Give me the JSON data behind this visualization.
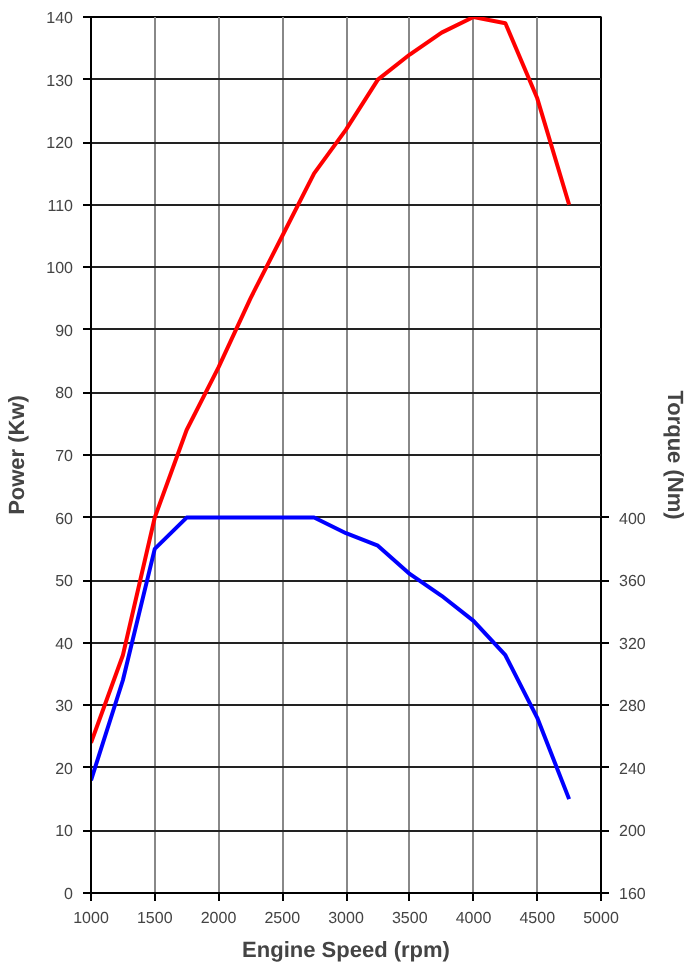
{
  "chart_data": {
    "type": "line",
    "xlabel": "Engine Speed (rpm)",
    "ylabel": "Power (Kw)",
    "y2label": "Torque (Nm)",
    "x": [
      1000,
      1250,
      1500,
      1750,
      2000,
      2250,
      2500,
      2750,
      3000,
      3250,
      3500,
      3750,
      4000,
      4250,
      4500,
      4750
    ],
    "series": [
      {
        "color": "#ff0000",
        "values": [
          24,
          38,
          60,
          74,
          84,
          95,
          105,
          115,
          122,
          130,
          134,
          137.5,
          140,
          139,
          127,
          110
        ]
      },
      {
        "color": "#0000ff",
        "axis": "y2",
        "values": [
          232,
          296,
          380,
          400,
          400,
          400,
          400,
          400,
          390,
          382,
          364,
          350,
          334,
          312,
          272,
          220
        ]
      }
    ],
    "xlim": [
      1000,
      5000
    ],
    "xticks": [
      1000,
      1500,
      2000,
      2500,
      3000,
      3500,
      4000,
      4500,
      5000
    ],
    "ylim": [
      0,
      140
    ],
    "yticks": [
      0,
      10,
      20,
      30,
      40,
      50,
      60,
      70,
      80,
      90,
      100,
      110,
      120,
      130,
      140
    ],
    "y2lim": [
      160,
      720
    ],
    "y2ticks": [
      160,
      200,
      240,
      280,
      320,
      360,
      400
    ],
    "grid": true,
    "line_style": "solid"
  }
}
